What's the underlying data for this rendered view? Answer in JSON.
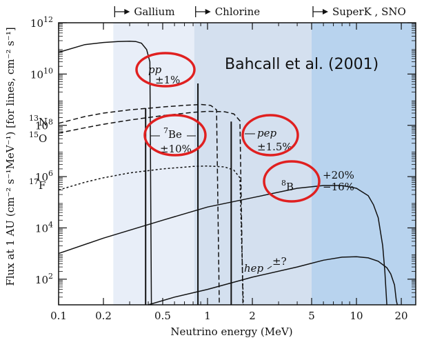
{
  "chart_data": {
    "type": "line",
    "title": "",
    "xlabel": "Neutrino energy (MeV)",
    "ylabel": "Flux at 1 AU (cm⁻² s⁻¹MeV⁻¹) [for lines, cm⁻² s⁻¹]",
    "xscale": "log",
    "yscale": "log",
    "xlim": [
      0.1,
      25
    ],
    "ylim": [
      10,
      1000000000000.0
    ],
    "x_ticks": [
      "0.1",
      "0.2",
      "0.5",
      "1",
      "2",
      "5",
      "10",
      "20"
    ],
    "y_ticks": [
      "10^2",
      "10^4",
      "10^6",
      "10^8",
      "10^10",
      "10^12"
    ],
    "grid": false,
    "annotation_text": "Bahcall et al. (2001)",
    "detector_thresholds": [
      {
        "label": "Gallium",
        "threshold_mev": 0.233,
        "color": "#e8eef8"
      },
      {
        "label": "Chlorine",
        "threshold_mev": 0.814,
        "color": "#d4e0ef"
      },
      {
        "label": "SuperK , SNO",
        "threshold_mev": 5.0,
        "color": "#b8d3ee"
      }
    ],
    "continuum_spectra": [
      {
        "name": "pp",
        "style": "solid",
        "x": [
          0.1,
          0.15,
          0.2,
          0.25,
          0.3,
          0.33,
          0.36,
          0.39,
          0.41,
          0.42
        ],
        "y": [
          70000000000.0,
          140000000000.0,
          170000000000.0,
          185000000000.0,
          190000000000.0,
          185000000000.0,
          160000000000.0,
          90000000000.0,
          30000000000.0,
          10
        ]
      },
      {
        "name": "13N",
        "style": "dashed",
        "x": [
          0.1,
          0.15,
          0.2,
          0.3,
          0.5,
          0.7,
          0.9,
          1.05,
          1.15,
          1.2
        ],
        "y": [
          120000000.0,
          220000000.0,
          300000000.0,
          400000000.0,
          520000000.0,
          600000000.0,
          650000000.0,
          600000000.0,
          400000000.0,
          10
        ]
      },
      {
        "name": "15O",
        "style": "dashed",
        "x": [
          0.1,
          0.15,
          0.2,
          0.3,
          0.5,
          0.8,
          1.0,
          1.3,
          1.5,
          1.65,
          1.73
        ],
        "y": [
          50000000.0,
          80000000.0,
          110000000.0,
          160000000.0,
          240000000.0,
          320000000.0,
          350000000.0,
          340000000.0,
          280000000.0,
          150000000.0,
          10
        ]
      },
      {
        "name": "17F",
        "style": "dotted",
        "x": [
          0.1,
          0.15,
          0.2,
          0.3,
          0.5,
          0.8,
          1.0,
          1.3,
          1.5,
          1.65,
          1.74
        ],
        "y": [
          300000.0,
          600000.0,
          900000.0,
          1400000.0,
          2000000.0,
          2500000.0,
          2600000.0,
          2400000.0,
          1800000.0,
          900000.0,
          10
        ]
      },
      {
        "name": "8B",
        "style": "solid",
        "x": [
          0.1,
          0.2,
          0.5,
          1,
          2,
          4,
          6,
          8,
          10,
          12,
          13,
          14,
          15,
          15.5,
          16
        ],
        "y": [
          1000.0,
          4000.0,
          20000.0,
          65000.0,
          150000.0,
          350000.0,
          450000.0,
          450000.0,
          350000.0,
          180000.0,
          80000.0,
          25000.0,
          2000.0,
          200,
          10
        ]
      },
      {
        "name": "hep",
        "style": "solid",
        "x": [
          0.4,
          0.6,
          1,
          2,
          4,
          6,
          8,
          10,
          12,
          14,
          16,
          17,
          18,
          18.5,
          18.8
        ],
        "y": [
          10,
          20,
          40,
          120,
          300,
          550,
          720,
          750,
          680,
          500,
          280,
          160,
          60,
          15,
          10
        ]
      }
    ],
    "line_sources": [
      {
        "name": "7Be",
        "energy_mev": 0.384,
        "flux": 470000000.0
      },
      {
        "name": "7Be",
        "energy_mev": 0.862,
        "flux": 4300000000.0
      },
      {
        "name": "pep",
        "energy_mev": 1.442,
        "flux": 140000000.0
      }
    ],
    "labels": {
      "pp": "pp",
      "pp_unc": "±1%",
      "n13": "13N",
      "o15": "15O",
      "f17": "17F",
      "be7": "7Be",
      "be7_unc": "±10%",
      "pep": "pep",
      "pep_unc": "±1.5%",
      "b8": "8B",
      "b8_up": "+20%",
      "b8_dn": "−16%",
      "hep": "hep",
      "hep_unc": "±?"
    },
    "highlight_color": "#e02020"
  }
}
